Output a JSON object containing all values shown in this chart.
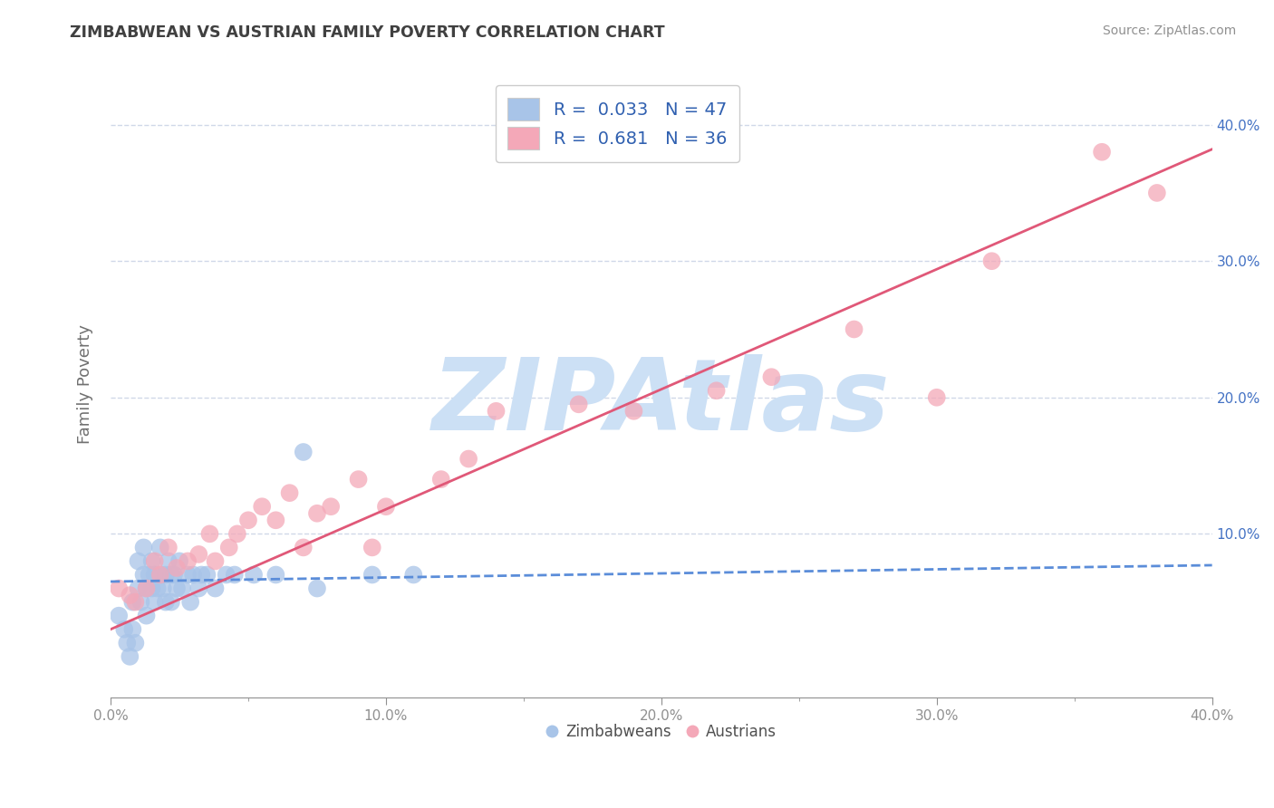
{
  "title": "ZIMBABWEAN VS AUSTRIAN FAMILY POVERTY CORRELATION CHART",
  "source": "Source: ZipAtlas.com",
  "ylabel": "Family Poverty",
  "xlim": [
    0.0,
    0.4
  ],
  "ylim": [
    -0.02,
    0.44
  ],
  "blue_R": 0.033,
  "blue_N": 47,
  "pink_R": 0.681,
  "pink_N": 36,
  "blue_color": "#a8c4e8",
  "pink_color": "#f4a8b8",
  "blue_line_color": "#5b8dd9",
  "pink_line_color": "#e05878",
  "watermark": "ZIPAtlas",
  "watermark_color": "#cce0f5",
  "legend_label_blue": "Zimbabweans",
  "legend_label_pink": "Austrians",
  "blue_x": [
    0.003,
    0.005,
    0.006,
    0.007,
    0.008,
    0.008,
    0.009,
    0.01,
    0.01,
    0.011,
    0.012,
    0.012,
    0.013,
    0.013,
    0.014,
    0.015,
    0.015,
    0.016,
    0.016,
    0.017,
    0.018,
    0.018,
    0.019,
    0.02,
    0.02,
    0.021,
    0.022,
    0.022,
    0.023,
    0.024,
    0.025,
    0.026,
    0.028,
    0.029,
    0.03,
    0.032,
    0.033,
    0.035,
    0.038,
    0.042,
    0.045,
    0.052,
    0.06,
    0.07,
    0.075,
    0.095,
    0.11
  ],
  "blue_y": [
    0.04,
    0.03,
    0.02,
    0.01,
    0.05,
    0.03,
    0.02,
    0.08,
    0.06,
    0.05,
    0.09,
    0.07,
    0.06,
    0.04,
    0.07,
    0.08,
    0.06,
    0.07,
    0.05,
    0.06,
    0.09,
    0.07,
    0.06,
    0.07,
    0.05,
    0.08,
    0.07,
    0.05,
    0.07,
    0.06,
    0.08,
    0.06,
    0.07,
    0.05,
    0.07,
    0.06,
    0.07,
    0.07,
    0.06,
    0.07,
    0.07,
    0.07,
    0.07,
    0.16,
    0.06,
    0.07,
    0.07
  ],
  "pink_x": [
    0.003,
    0.007,
    0.009,
    0.013,
    0.016,
    0.018,
    0.021,
    0.024,
    0.028,
    0.032,
    0.036,
    0.038,
    0.043,
    0.046,
    0.05,
    0.055,
    0.06,
    0.065,
    0.07,
    0.075,
    0.08,
    0.09,
    0.095,
    0.1,
    0.12,
    0.13,
    0.14,
    0.17,
    0.19,
    0.22,
    0.24,
    0.27,
    0.3,
    0.32,
    0.36,
    0.38
  ],
  "pink_y": [
    0.06,
    0.055,
    0.05,
    0.06,
    0.08,
    0.07,
    0.09,
    0.075,
    0.08,
    0.085,
    0.1,
    0.08,
    0.09,
    0.1,
    0.11,
    0.12,
    0.11,
    0.13,
    0.09,
    0.115,
    0.12,
    0.14,
    0.09,
    0.12,
    0.14,
    0.155,
    0.19,
    0.195,
    0.19,
    0.205,
    0.215,
    0.25,
    0.2,
    0.3,
    0.38,
    0.35
  ],
  "blue_line_intercept": 0.065,
  "blue_line_slope": 0.03,
  "pink_line_intercept": 0.03,
  "pink_line_slope": 0.88,
  "grid_color": "#d0d8e8",
  "bg_color": "#ffffff",
  "title_color": "#404040",
  "axis_label_color": "#707070",
  "tick_color": "#909090",
  "right_tick_color": "#4472c4"
}
